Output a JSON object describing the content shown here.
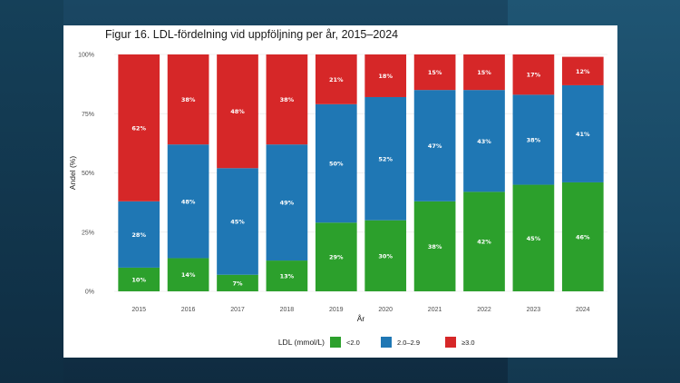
{
  "chart_data": {
    "type": "bar",
    "stacked": true,
    "title": "Figur 16. LDL-fördelning vid uppföljning per år, 2015–2024",
    "xlabel": "År",
    "ylabel": "Andel (%)",
    "ylim": [
      0,
      100
    ],
    "y_ticks": [
      "0%",
      "25%",
      "50%",
      "75%",
      "100%"
    ],
    "categories": [
      "2015",
      "2016",
      "2017",
      "2018",
      "2019",
      "2020",
      "2021",
      "2022",
      "2023",
      "2024"
    ],
    "series": [
      {
        "name": "<2.0",
        "color": "#2ca02c",
        "values": [
          10,
          14,
          7,
          13,
          29,
          30,
          38,
          42,
          45,
          46
        ]
      },
      {
        "name": "2.0–2.9",
        "color": "#1f77b4",
        "values": [
          28,
          48,
          45,
          49,
          50,
          52,
          47,
          43,
          38,
          41
        ]
      },
      {
        "name": "≥3.0",
        "color": "#d62728",
        "values": [
          62,
          38,
          48,
          38,
          21,
          18,
          15,
          15,
          17,
          12
        ]
      }
    ],
    "legend": {
      "title": "LDL (mmol/L)",
      "position": "bottom"
    },
    "grid": true
  }
}
